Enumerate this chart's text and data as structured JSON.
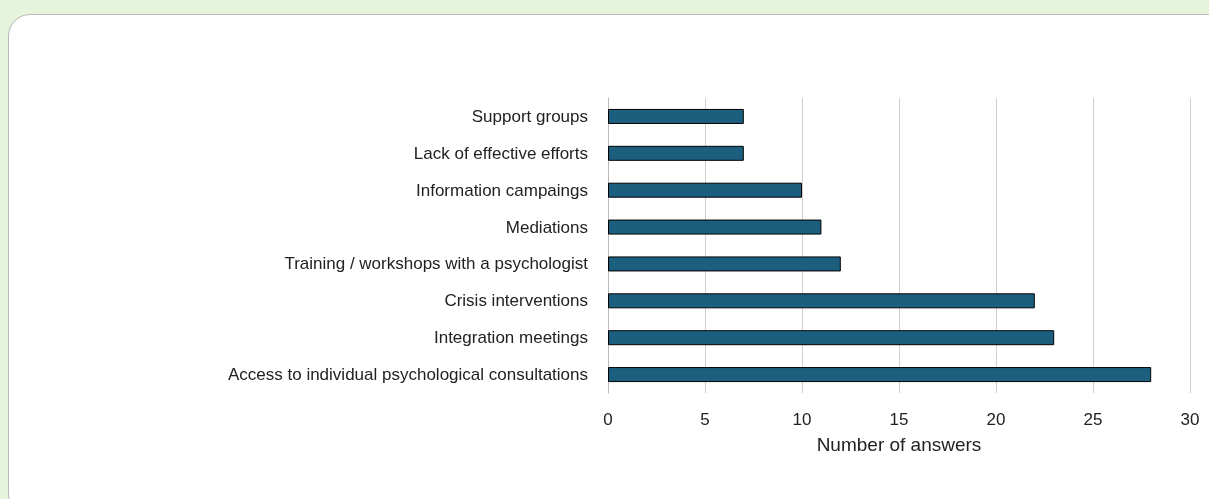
{
  "chart_data": {
    "type": "bar",
    "orientation": "horizontal",
    "categories": [
      "Support groups",
      "Lack of effective efforts",
      "Information campaings",
      "Mediations",
      "Training / workshops with a psychologist",
      "Crisis interventions",
      "Integration meetings",
      "Access to individual psychological consultations"
    ],
    "values": [
      7,
      7,
      10,
      11,
      12,
      22,
      23,
      28
    ],
    "color": "#1b5e7e",
    "xlabel": "Number of answers",
    "xlim": [
      0,
      30
    ],
    "xticks": [
      0,
      5,
      10,
      15,
      20,
      25,
      30
    ],
    "grid": "x"
  }
}
